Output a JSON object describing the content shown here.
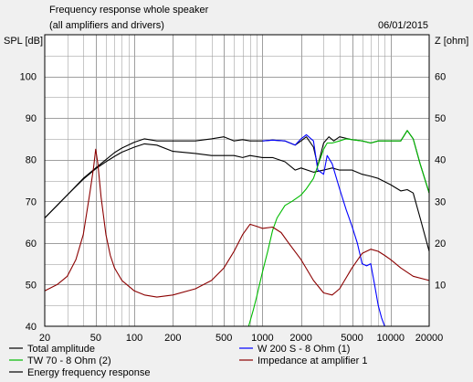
{
  "header": {
    "title": "Frequency response whole speaker",
    "subtitle": "(all amplifiers and drivers)",
    "date": "06/01/2015"
  },
  "chart_data": {
    "type": "line",
    "xscale": "log",
    "xlim": [
      20,
      20000
    ],
    "x_ticks": [
      20,
      50,
      100,
      200,
      500,
      1000,
      2000,
      5000,
      10000,
      20000
    ],
    "x_tick_labels": [
      "20",
      "50",
      "100",
      "200",
      "500",
      "1000",
      "2000",
      "5000",
      "10000",
      "20000"
    ],
    "ylabel_left": "SPL [dB]",
    "ylabel_right": "Z [ohm]",
    "ylim_left": [
      40,
      110
    ],
    "ylim_right": [
      0,
      70
    ],
    "y_ticks_left": [
      40,
      50,
      60,
      70,
      80,
      90,
      100
    ],
    "y_ticks_right": [
      10,
      20,
      30,
      40,
      50,
      60
    ],
    "grid": true,
    "colors": {
      "plot_bg": "#ffffff",
      "grid": "#9a9a9a",
      "total": "#000000",
      "energy": "#000000",
      "woofer": "#0000ff",
      "tweeter": "#00bb00",
      "impedance": "#8b0000"
    },
    "legend_position": "bottom",
    "series": [
      {
        "name": "Total amplitude",
        "key": "total",
        "axis": "left",
        "x": [
          20,
          30,
          40,
          50,
          60,
          70,
          80,
          100,
          120,
          150,
          200,
          300,
          400,
          500,
          600,
          700,
          800,
          1000,
          1200,
          1500,
          1800,
          2000,
          2200,
          2500,
          2700,
          3000,
          3300,
          3600,
          4000,
          5000,
          6000,
          7000,
          8000,
          10000,
          12000,
          13500,
          15000,
          17000,
          20000
        ],
        "y": [
          66,
          71.5,
          75.5,
          78,
          80,
          81.7,
          82.8,
          84.2,
          85,
          84.5,
          84.5,
          84.5,
          85,
          85.5,
          84.5,
          84.8,
          84.5,
          84.5,
          84.7,
          84.5,
          83.5,
          84.5,
          85.5,
          83,
          78.5,
          84,
          85.5,
          84.5,
          85.5,
          84.8,
          84.5,
          84,
          84.5,
          84.5,
          84.5,
          87,
          85,
          79,
          72
        ]
      },
      {
        "name": "Energy frequency response",
        "key": "energy",
        "axis": "left",
        "x": [
          20,
          30,
          40,
          50,
          60,
          70,
          80,
          100,
          120,
          150,
          200,
          300,
          400,
          500,
          600,
          700,
          800,
          1000,
          1200,
          1500,
          1800,
          2000,
          2500,
          3000,
          3500,
          4000,
          5000,
          6000,
          7000,
          8000,
          10000,
          12000,
          13500,
          15000,
          17000,
          20000
        ],
        "y": [
          66,
          71.5,
          75.3,
          77.8,
          79.5,
          80.8,
          81.8,
          83,
          83.8,
          83.5,
          82,
          81.5,
          81,
          81,
          81,
          80.5,
          81,
          80.5,
          80.5,
          79.5,
          77.5,
          78,
          77,
          77.5,
          78,
          77.5,
          77.5,
          76.5,
          76,
          75.5,
          74,
          72.5,
          72.8,
          72,
          66,
          58
        ]
      },
      {
        "name": "W 200 S - 8 Ohm (1)",
        "key": "woofer",
        "axis": "left",
        "x": [
          1000,
          1200,
          1500,
          1800,
          2000,
          2200,
          2500,
          2700,
          3000,
          3200,
          3500,
          4000,
          4500,
          5000,
          5500,
          6000,
          6500,
          7000,
          7500,
          8000,
          8500,
          9000,
          10000
        ],
        "y": [
          84.5,
          84.7,
          84.5,
          83.5,
          85,
          86,
          84.5,
          77.5,
          76.5,
          81,
          79,
          73,
          68,
          64,
          60,
          55,
          54.5,
          55,
          50,
          45,
          42,
          40,
          40
        ]
      },
      {
        "name": "TW 70 - 8 Ohm (2)",
        "key": "tweeter",
        "axis": "left",
        "x": [
          20,
          780,
          850,
          900,
          1000,
          1100,
          1200,
          1300,
          1500,
          1700,
          2000,
          2200,
          2500,
          2700,
          3000,
          3200,
          3500,
          4000,
          4500,
          5000,
          6000,
          7000,
          8000,
          10000,
          12000,
          13500,
          15000,
          17000,
          20000
        ],
        "y": [
          40,
          40,
          44,
          47,
          53,
          58,
          63,
          66,
          69,
          70,
          71.5,
          73,
          75.5,
          78.5,
          82.5,
          84,
          84,
          84.5,
          85,
          84.8,
          84.5,
          84,
          84.5,
          84.5,
          84.5,
          87,
          85,
          79,
          72
        ]
      },
      {
        "name": "Impedance at amplifier 1",
        "key": "impedance",
        "axis": "right",
        "x": [
          20,
          25,
          30,
          35,
          40,
          45,
          48,
          50,
          52,
          55,
          60,
          65,
          70,
          80,
          100,
          120,
          150,
          200,
          300,
          400,
          500,
          600,
          700,
          800,
          900,
          1000,
          1200,
          1400,
          1600,
          2000,
          2500,
          3000,
          3500,
          4000,
          5000,
          6000,
          7000,
          8000,
          9000,
          10000,
          12000,
          15000,
          20000
        ],
        "y": [
          8.5,
          10,
          12,
          16,
          22,
          32,
          38,
          42.5,
          39,
          31,
          22,
          17,
          14,
          11,
          8.5,
          7.5,
          7,
          7.5,
          9,
          11,
          14,
          18,
          22,
          24.5,
          24,
          23.5,
          23.8,
          22.5,
          20,
          16,
          11,
          8,
          7.5,
          9,
          14,
          17.5,
          18.5,
          18,
          17,
          16,
          14,
          12,
          11
        ]
      }
    ]
  }
}
